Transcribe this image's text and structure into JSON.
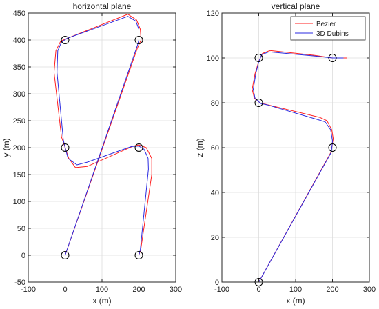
{
  "colors": {
    "bezier": "#ff1f1f",
    "dubins": "#2a2ae0",
    "axis": "#262626",
    "grid": "#dcdcdc",
    "waypoint": "#000000"
  },
  "chart_data": [
    {
      "type": "line",
      "title": "horizontal plane",
      "xlabel": "x (m)",
      "ylabel": "y (m)",
      "xlim": [
        -100,
        300
      ],
      "ylim": [
        -50,
        450
      ],
      "xticks": [
        "-100",
        "0",
        "100",
        "200",
        "300"
      ],
      "yticks": [
        "-50",
        "0",
        "50",
        "100",
        "150",
        "200",
        "250",
        "300",
        "350",
        "400",
        "450"
      ],
      "xtick_values": [
        -100,
        0,
        100,
        200,
        300
      ],
      "ytick_values": [
        -50,
        0,
        50,
        100,
        150,
        200,
        250,
        300,
        350,
        400,
        450
      ],
      "grid": true,
      "legend": null,
      "waypoints": [
        {
          "x": 0,
          "y": 0
        },
        {
          "x": 200,
          "y": 400
        },
        {
          "x": 0,
          "y": 400
        },
        {
          "x": 0,
          "y": 200
        },
        {
          "x": 200,
          "y": 200
        },
        {
          "x": 200,
          "y": 0
        }
      ],
      "series": [
        {
          "name": "Bezier",
          "color_key": "bezier",
          "points": [
            [
              0,
              0
            ],
            [
              196,
              385
            ],
            [
              206,
              400
            ],
            [
              204,
              420
            ],
            [
              194,
              437
            ],
            [
              170,
              448
            ],
            [
              5,
              403
            ],
            [
              -12,
              398
            ],
            [
              -25,
              380
            ],
            [
              -30,
              340
            ],
            [
              -10,
              220
            ],
            [
              0,
              200
            ],
            [
              10,
              180
            ],
            [
              28,
              163
            ],
            [
              60,
              165
            ],
            [
              185,
              203
            ],
            [
              200,
              205
            ],
            [
              220,
              200
            ],
            [
              235,
              180
            ],
            [
              235,
              150
            ],
            [
              205,
              10
            ],
            [
              200,
              0
            ]
          ]
        },
        {
          "name": "3D Dubins",
          "color_key": "dubins",
          "points": [
            [
              0,
              0
            ],
            [
              196,
              390
            ],
            [
              200,
              400
            ],
            [
              200,
              420
            ],
            [
              192,
              435
            ],
            [
              170,
              444
            ],
            [
              5,
              403
            ],
            [
              -10,
              396
            ],
            [
              -20,
              380
            ],
            [
              -22,
              340
            ],
            [
              -5,
              215
            ],
            [
              0,
              200
            ],
            [
              8,
              180
            ],
            [
              32,
              168
            ],
            [
              60,
              173
            ],
            [
              180,
              202
            ],
            [
              200,
              203
            ],
            [
              214,
              197
            ],
            [
              225,
              180
            ],
            [
              226,
              160
            ],
            [
              204,
              10
            ],
            [
              200,
              0
            ]
          ]
        }
      ]
    },
    {
      "type": "line",
      "title": "vertical plane",
      "xlabel": "x (m)",
      "ylabel": "z (m)",
      "xlim": [
        -100,
        300
      ],
      "ylim": [
        0,
        120
      ],
      "xticks": [
        "-100",
        "0",
        "100",
        "200",
        "300"
      ],
      "yticks": [
        "0",
        "20",
        "40",
        "60",
        "80",
        "100",
        "120"
      ],
      "xtick_values": [
        -100,
        0,
        100,
        200,
        300
      ],
      "ytick_values": [
        0,
        20,
        40,
        60,
        80,
        100,
        120
      ],
      "grid": true,
      "legend": "top-right",
      "waypoints": [
        {
          "x": 0,
          "y": 0
        },
        {
          "x": 200,
          "y": 60
        },
        {
          "x": 0,
          "y": 80
        },
        {
          "x": 0,
          "y": 100
        },
        {
          "x": 200,
          "y": 100
        }
      ],
      "series": [
        {
          "name": "Bezier",
          "color_key": "bezier",
          "points": [
            [
              0,
              0
            ],
            [
              196,
              58
            ],
            [
              202,
              64
            ],
            [
              198,
              68
            ],
            [
              185,
              72
            ],
            [
              165,
              73.5
            ],
            [
              20,
              79.3
            ],
            [
              5,
              79.8
            ],
            [
              -12,
              82
            ],
            [
              -18,
              86
            ],
            [
              -10,
              93
            ],
            [
              0,
              98.5
            ],
            [
              10,
              102
            ],
            [
              30,
              103.3
            ],
            [
              150,
              101.2
            ],
            [
              200,
              100
            ],
            [
              240,
              100
            ]
          ]
        },
        {
          "name": "3D Dubins",
          "color_key": "dubins",
          "points": [
            [
              0,
              0
            ],
            [
              197,
              58
            ],
            [
              200,
              63
            ],
            [
              195,
              68
            ],
            [
              180,
              71.5
            ],
            [
              160,
              72.5
            ],
            [
              25,
              79.0
            ],
            [
              5,
              79.7
            ],
            [
              -10,
              82
            ],
            [
              -15,
              86
            ],
            [
              -8,
              93
            ],
            [
              0,
              98.3
            ],
            [
              8,
              101.5
            ],
            [
              28,
              102.7
            ],
            [
              150,
              100.9
            ],
            [
              200,
              100
            ],
            [
              230,
              100
            ]
          ]
        }
      ]
    }
  ]
}
